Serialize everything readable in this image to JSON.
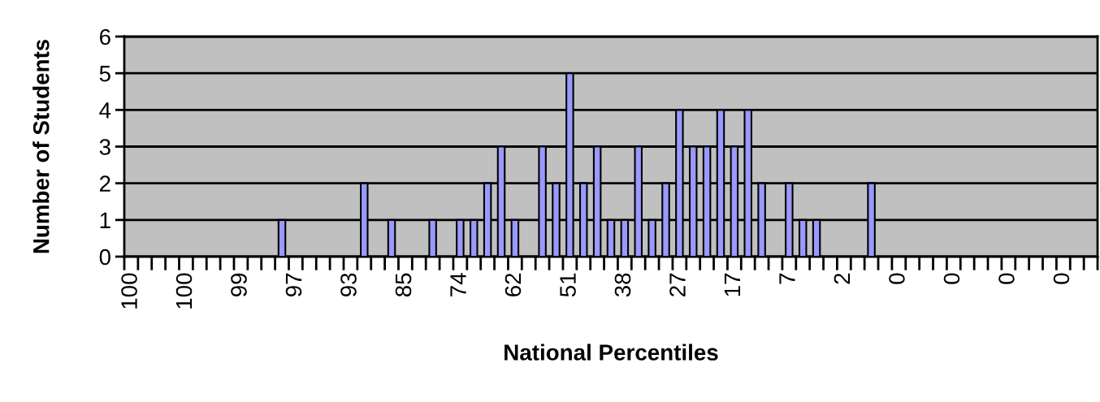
{
  "chart_data": {
    "type": "bar",
    "xlabel": "National Percentiles",
    "ylabel": "Number of Students",
    "categories": [
      "100",
      null,
      null,
      null,
      "100",
      null,
      null,
      null,
      "99",
      null,
      null,
      null,
      "97",
      null,
      null,
      null,
      "93",
      null,
      null,
      null,
      "85",
      null,
      null,
      null,
      "74",
      null,
      null,
      null,
      "62",
      null,
      null,
      null,
      "51",
      null,
      null,
      null,
      "38",
      null,
      null,
      null,
      "27",
      null,
      null,
      null,
      "17",
      null,
      null,
      null,
      "7",
      null,
      null,
      null,
      "2",
      null,
      null,
      null,
      "0",
      null,
      null,
      null,
      "0",
      null,
      null,
      null,
      "0",
      null,
      null,
      null,
      "0",
      null,
      null
    ],
    "values": [
      0,
      0,
      0,
      0,
      0,
      0,
      0,
      0,
      0,
      0,
      0,
      1,
      0,
      0,
      0,
      0,
      0,
      2,
      0,
      1,
      0,
      0,
      1,
      0,
      1,
      1,
      2,
      3,
      1,
      0,
      3,
      2,
      5,
      2,
      3,
      1,
      1,
      3,
      1,
      2,
      4,
      3,
      3,
      4,
      3,
      4,
      2,
      0,
      2,
      1,
      1,
      0,
      0,
      0,
      2,
      0,
      0,
      0,
      0,
      0,
      0,
      0,
      0,
      0,
      0,
      0,
      0,
      0,
      0,
      0,
      0
    ],
    "color": "#9999ff",
    "ylim": [
      0,
      6
    ],
    "yticks": [
      0,
      1,
      2,
      3,
      4,
      5,
      6
    ],
    "grid": "y"
  }
}
